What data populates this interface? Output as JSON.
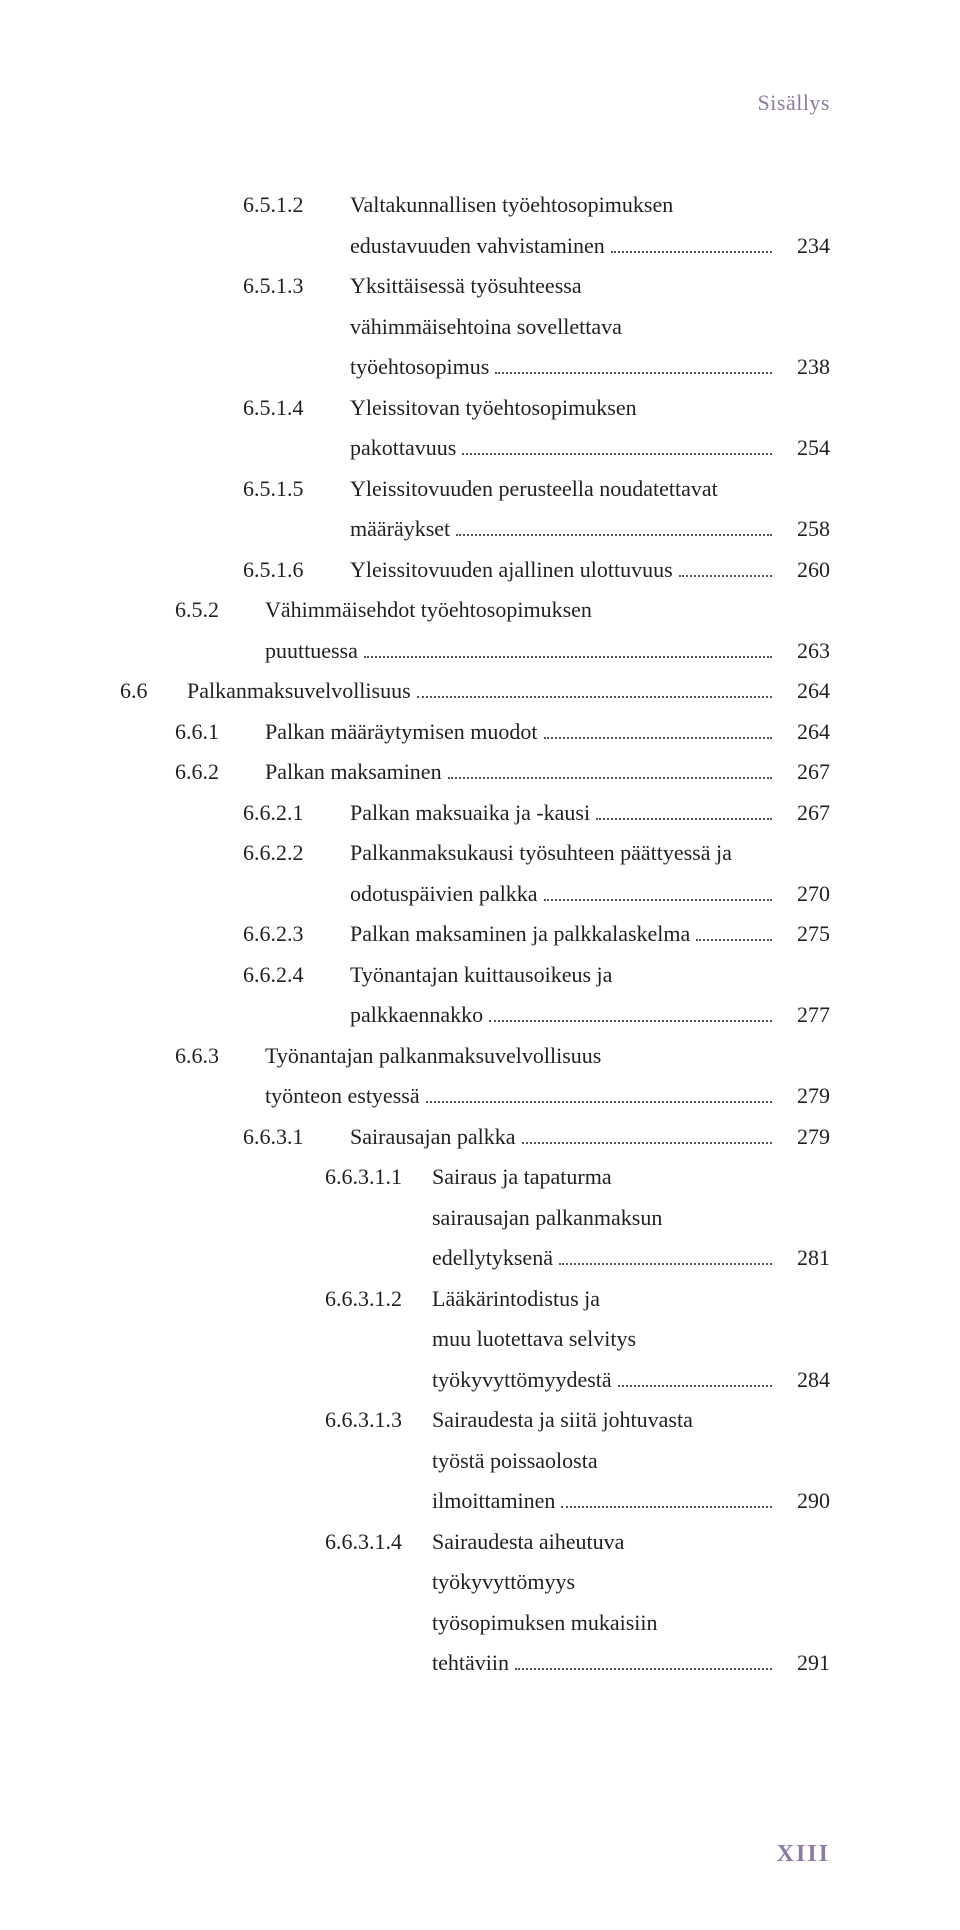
{
  "document": {
    "running_head": "Sisällys",
    "page_number": "XIII",
    "colors": {
      "text": "#231f20",
      "accent": "#8e7ca0",
      "dots": "#555555",
      "background": "#ffffff"
    },
    "typography": {
      "body_family": "Georgia, 'Times New Roman', serif",
      "body_size_pt": 17,
      "line_height": 1.75,
      "running_head_size_pt": 17,
      "page_number_size_pt": 18,
      "page_number_weight": "bold"
    }
  },
  "toc": {
    "entries": [
      {
        "level": 2,
        "num": "6.5.1.2",
        "lines": [
          "Valtakunnallisen työehtosopimuksen",
          "edustavuuden vahvistaminen"
        ],
        "page": "234"
      },
      {
        "level": 2,
        "num": "6.5.1.3",
        "lines": [
          "Yksittäisessä työsuhteessa",
          "vähimmäisehtoina sovellettava",
          "työehtosopimus"
        ],
        "page": "238"
      },
      {
        "level": 2,
        "num": "6.5.1.4",
        "lines": [
          "Yleissitovan työehtosopimuksen",
          "pakottavuus"
        ],
        "page": "254"
      },
      {
        "level": 2,
        "num": "6.5.1.5",
        "lines": [
          "Yleissitovuuden perusteella noudatettavat",
          "määräykset"
        ],
        "page": "258"
      },
      {
        "level": 2,
        "num": "6.5.1.6",
        "lines": [
          "Yleissitovuuden ajallinen ulottuvuus"
        ],
        "page": "260"
      },
      {
        "level": 1,
        "num": "6.5.2",
        "lines": [
          "Vähimmäisehdot työehtosopimuksen",
          "puuttuessa"
        ],
        "page": "263"
      },
      {
        "level": 0,
        "num": "6.6",
        "lines": [
          "Palkanmaksuvelvollisuus"
        ],
        "page": "264"
      },
      {
        "level": 1,
        "num": "6.6.1",
        "lines": [
          "Palkan määräytymisen muodot"
        ],
        "page": "264"
      },
      {
        "level": 1,
        "num": "6.6.2",
        "lines": [
          "Palkan maksaminen"
        ],
        "page": "267"
      },
      {
        "level": 2,
        "num": "6.6.2.1",
        "lines": [
          "Palkan maksuaika ja -kausi"
        ],
        "page": "267"
      },
      {
        "level": 2,
        "num": "6.6.2.2",
        "lines": [
          "Palkanmaksukausi työsuhteen päättyessä ja",
          "odotuspäivien palkka"
        ],
        "page": "270"
      },
      {
        "level": 2,
        "num": "6.6.2.3",
        "lines": [
          "Palkan maksaminen ja palkkalaskelma"
        ],
        "page": "275"
      },
      {
        "level": 2,
        "num": "6.6.2.4",
        "lines": [
          "Työnantajan kuittausoikeus ja",
          "palkkaennakko"
        ],
        "page": "277"
      },
      {
        "level": 1,
        "num": "6.6.3",
        "lines": [
          "Työnantajan palkanmaksuvelvollisuus",
          "työnteon estyessä"
        ],
        "page": "279"
      },
      {
        "level": 2,
        "num": "6.6.3.1",
        "lines": [
          "Sairausajan palkka"
        ],
        "page": "279"
      },
      {
        "level": 3,
        "num": "6.6.3.1.1",
        "lines": [
          "Sairaus ja tapaturma",
          "sairausajan palkanmaksun",
          "edellytyksenä"
        ],
        "page": "281"
      },
      {
        "level": 3,
        "num": "6.6.3.1.2",
        "lines": [
          "Lääkärintodistus ja",
          "muu luotettava selvitys",
          "työkyvyttömyydestä"
        ],
        "page": "284"
      },
      {
        "level": 3,
        "num": "6.6.3.1.3",
        "lines": [
          "Sairaudesta ja siitä johtuvasta",
          "työstä poissaolosta",
          "ilmoittaminen"
        ],
        "page": "290"
      },
      {
        "level": 3,
        "num": "6.6.3.1.4",
        "lines": [
          "Sairaudesta aiheutuva",
          "työkyvyttömyys",
          "työsopimuksen mukaisiin",
          "tehtäviin"
        ],
        "page": "291"
      }
    ]
  }
}
